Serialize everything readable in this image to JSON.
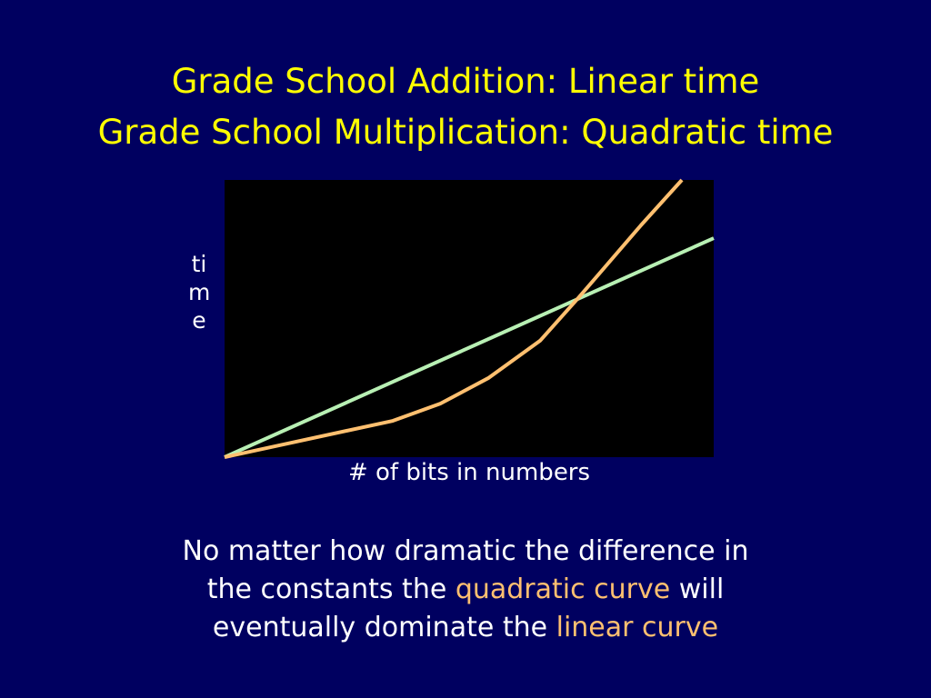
{
  "title_lines": [
    "Grade School Addition: Linear time",
    "Grade School Multiplication: Quadratic time"
  ],
  "chart_data": {
    "type": "line",
    "x_label": "# of bits in numbers",
    "y_label": "time",
    "xlim": [
      0,
      100
    ],
    "ylim": [
      0,
      100
    ],
    "series": [
      {
        "color": "#b8f0b4",
        "x": [
          0,
          100
        ],
        "values": [
          0,
          79
        ]
      },
      {
        "color": "#ffc070",
        "x": [
          0,
          34.4,
          44.1,
          53.9,
          64.5,
          72.3,
          76.8,
          85.1,
          93.5
        ],
        "values": [
          0,
          13.1,
          19.3,
          28.5,
          42,
          57.4,
          66.6,
          83.6,
          100
        ]
      }
    ]
  },
  "body_lines": [
    [
      "No matter how dramatic the difference in"
    ],
    [
      "the constants the ",
      "quadratic curve",
      " will"
    ],
    [
      "eventually dominate the ",
      "linear curve"
    ]
  ]
}
